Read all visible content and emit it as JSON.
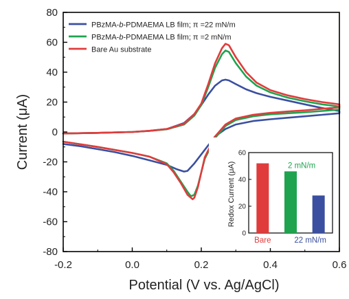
{
  "chart_data": [
    {
      "type": "line",
      "xlabel": "Potential (V vs. Ag/AgCl)",
      "ylabel": "Current (μA)",
      "xlim": [
        -0.2,
        0.6
      ],
      "ylim": [
        -80,
        80
      ],
      "xticks": [
        "-0.2",
        "0.0",
        "0.2",
        "0.4",
        "0.6"
      ],
      "yticks": [
        "80",
        "60",
        "40",
        "20",
        "0",
        "-20",
        "-40",
        "-60",
        "-80"
      ],
      "grid": false,
      "legend_position": "top-left",
      "series": [
        {
          "name": "PBzMA-b-PDMAEMA LB film; π =22 mN/m",
          "label_parts": [
            "PBzMA-",
            "b",
            "-PDMAEMA LB film; π =22 mN/m"
          ],
          "color": "#3a4fa0",
          "forward": [
            [
              -0.2,
              -1
            ],
            [
              -0.1,
              -0.6
            ],
            [
              0.0,
              0
            ],
            [
              0.05,
              0.8
            ],
            [
              0.1,
              2
            ],
            [
              0.15,
              6
            ],
            [
              0.18,
              12
            ],
            [
              0.2,
              18
            ],
            [
              0.22,
              25
            ],
            [
              0.24,
              31
            ],
            [
              0.26,
              34.5
            ],
            [
              0.27,
              35
            ],
            [
              0.28,
              34.5
            ],
            [
              0.3,
              32
            ],
            [
              0.33,
              28.5
            ],
            [
              0.36,
              26
            ],
            [
              0.4,
              23.5
            ],
            [
              0.45,
              21
            ],
            [
              0.5,
              18.5
            ],
            [
              0.55,
              16
            ],
            [
              0.6,
              14
            ]
          ],
          "reverse": [
            [
              0.6,
              12.5
            ],
            [
              0.55,
              11.5
            ],
            [
              0.5,
              10.5
            ],
            [
              0.45,
              9.5
            ],
            [
              0.4,
              8.5
            ],
            [
              0.35,
              7.3
            ],
            [
              0.3,
              5
            ],
            [
              0.27,
              2
            ],
            [
              0.24,
              -3
            ],
            [
              0.21,
              -12
            ],
            [
              0.18,
              -21
            ],
            [
              0.16,
              -26
            ],
            [
              0.15,
              -26.5
            ],
            [
              0.13,
              -25
            ],
            [
              0.1,
              -22
            ],
            [
              0.05,
              -19
            ],
            [
              0.0,
              -16
            ],
            [
              -0.05,
              -13.5
            ],
            [
              -0.1,
              -11.5
            ],
            [
              -0.15,
              -9.5
            ],
            [
              -0.2,
              -8
            ]
          ]
        },
        {
          "name": "PBzMA-b-PDMAEMA LB film; π =2 mN/m",
          "label_parts": [
            "PBzMA-",
            "b",
            "-PDMAEMA LB film; π =2 mN/m"
          ],
          "color": "#1fa34f",
          "forward": [
            [
              -0.2,
              -1
            ],
            [
              -0.1,
              -0.6
            ],
            [
              0.0,
              0
            ],
            [
              0.05,
              0.7
            ],
            [
              0.1,
              1.8
            ],
            [
              0.15,
              5
            ],
            [
              0.18,
              11
            ],
            [
              0.2,
              18
            ],
            [
              0.22,
              30
            ],
            [
              0.24,
              43
            ],
            [
              0.26,
              52
            ],
            [
              0.27,
              54.5
            ],
            [
              0.28,
              53.5
            ],
            [
              0.3,
              46
            ],
            [
              0.33,
              37
            ],
            [
              0.36,
              31
            ],
            [
              0.4,
              26.5
            ],
            [
              0.45,
              23
            ],
            [
              0.5,
              20.5
            ],
            [
              0.55,
              18.5
            ],
            [
              0.6,
              17
            ]
          ],
          "reverse": [
            [
              0.6,
              15
            ],
            [
              0.55,
              14
            ],
            [
              0.5,
              13.2
            ],
            [
              0.45,
              12.5
            ],
            [
              0.4,
              11.8
            ],
            [
              0.35,
              10.5
            ],
            [
              0.3,
              8
            ],
            [
              0.27,
              4
            ],
            [
              0.24,
              -4
            ],
            [
              0.21,
              -18
            ],
            [
              0.19,
              -36
            ],
            [
              0.18,
              -42
            ],
            [
              0.17,
              -43
            ],
            [
              0.16,
              -40
            ],
            [
              0.14,
              -33
            ],
            [
              0.12,
              -26
            ],
            [
              0.1,
              -21
            ],
            [
              0.05,
              -16.5
            ],
            [
              0.0,
              -14
            ],
            [
              -0.1,
              -10
            ],
            [
              -0.2,
              -6.5
            ]
          ]
        },
        {
          "name": "Bare Au substrate",
          "label_parts": [
            "Bare Au substrate"
          ],
          "color": "#e03c3c",
          "forward": [
            [
              -0.2,
              -1
            ],
            [
              -0.1,
              -0.6
            ],
            [
              0.0,
              0
            ],
            [
              0.05,
              0.8
            ],
            [
              0.1,
              2
            ],
            [
              0.15,
              5.5
            ],
            [
              0.18,
              12
            ],
            [
              0.2,
              19
            ],
            [
              0.22,
              32
            ],
            [
              0.24,
              46
            ],
            [
              0.26,
              56
            ],
            [
              0.27,
              59
            ],
            [
              0.28,
              58
            ],
            [
              0.3,
              50
            ],
            [
              0.33,
              40
            ],
            [
              0.36,
              33
            ],
            [
              0.4,
              28
            ],
            [
              0.45,
              24.5
            ],
            [
              0.5,
              22
            ],
            [
              0.55,
              20
            ],
            [
              0.6,
              18.5
            ]
          ],
          "reverse": [
            [
              0.6,
              16.5
            ],
            [
              0.55,
              15.5
            ],
            [
              0.5,
              14.5
            ],
            [
              0.45,
              13.7
            ],
            [
              0.4,
              12.8
            ],
            [
              0.35,
              11.5
            ],
            [
              0.3,
              9
            ],
            [
              0.27,
              5
            ],
            [
              0.24,
              -3
            ],
            [
              0.21,
              -17
            ],
            [
              0.19,
              -37
            ],
            [
              0.18,
              -44
            ],
            [
              0.175,
              -45
            ],
            [
              0.16,
              -42
            ],
            [
              0.14,
              -34
            ],
            [
              0.12,
              -27
            ],
            [
              0.1,
              -21.5
            ],
            [
              0.05,
              -16.5
            ],
            [
              0.0,
              -14
            ],
            [
              -0.1,
              -10
            ],
            [
              -0.2,
              -6.5
            ]
          ]
        }
      ]
    },
    {
      "type": "bar",
      "ylabel": "Redox Current (μA)",
      "ylim": [
        0,
        60
      ],
      "yticks": [
        "60",
        "40",
        "20",
        "0"
      ],
      "categories": [
        "Bare",
        "2 mN/m",
        "22 mN/m"
      ],
      "values": [
        52,
        46,
        28
      ],
      "colors": [
        "#e03c3c",
        "#1fa34f",
        "#3a4fa0"
      ]
    }
  ]
}
